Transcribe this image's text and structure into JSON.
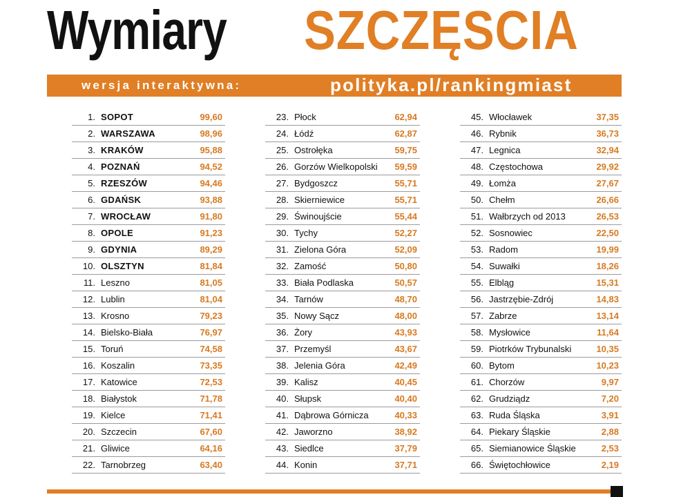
{
  "header": {
    "title_part1": "Wymiary",
    "title_part2": "SZCZĘSCIA",
    "banner_prefix": "wersja interaktywna:",
    "banner_url": "polityka.pl/rankingmiast"
  },
  "colors": {
    "accent": "#e07f25",
    "value_text": "#d67a22",
    "rule": "#9a9a9a"
  },
  "ranking": {
    "columns": [
      [
        {
          "rank": "1.",
          "city": "SOPOT",
          "score": "99,60"
        },
        {
          "rank": "2.",
          "city": "WARSZAWA",
          "score": "98,96"
        },
        {
          "rank": "3.",
          "city": "KRAKÓW",
          "score": "95,88"
        },
        {
          "rank": "4.",
          "city": "POZNAŃ",
          "score": "94,52"
        },
        {
          "rank": "5.",
          "city": "RZESZÓW",
          "score": "94,46"
        },
        {
          "rank": "6.",
          "city": "GDAŃSK",
          "score": "93,88"
        },
        {
          "rank": "7.",
          "city": "WROCŁAW",
          "score": "91,80"
        },
        {
          "rank": "8.",
          "city": "OPOLE",
          "score": "91,23"
        },
        {
          "rank": "9.",
          "city": "GDYNIA",
          "score": "89,29"
        },
        {
          "rank": "10.",
          "city": "OLSZTYN",
          "score": "81,84"
        },
        {
          "rank": "11.",
          "city": "Leszno",
          "score": "81,05"
        },
        {
          "rank": "12.",
          "city": "Lublin",
          "score": "81,04"
        },
        {
          "rank": "13.",
          "city": "Krosno",
          "score": "79,23"
        },
        {
          "rank": "14.",
          "city": "Bielsko-Biała",
          "score": "76,97"
        },
        {
          "rank": "15.",
          "city": "Toruń",
          "score": "74,58"
        },
        {
          "rank": "16.",
          "city": "Koszalin",
          "score": "73,35"
        },
        {
          "rank": "17.",
          "city": "Katowice",
          "score": "72,53"
        },
        {
          "rank": "18.",
          "city": "Białystok",
          "score": "71,78"
        },
        {
          "rank": "19.",
          "city": "Kielce",
          "score": "71,41"
        },
        {
          "rank": "20.",
          "city": "Szczecin",
          "score": "67,60"
        },
        {
          "rank": "21.",
          "city": "Gliwice",
          "score": "64,16"
        },
        {
          "rank": "22.",
          "city": "Tarnobrzeg",
          "score": "63,40"
        }
      ],
      [
        {
          "rank": "23.",
          "city": "Płock",
          "score": "62,94"
        },
        {
          "rank": "24.",
          "city": "Łódź",
          "score": "62,87"
        },
        {
          "rank": "25.",
          "city": "Ostrołęka",
          "score": "59,75"
        },
        {
          "rank": "26.",
          "city": "Gorzów Wielkopolski",
          "score": "59,59"
        },
        {
          "rank": "27.",
          "city": "Bydgoszcz",
          "score": "55,71"
        },
        {
          "rank": "28.",
          "city": "Skierniewice",
          "score": "55,71"
        },
        {
          "rank": "29.",
          "city": "Świnoujście",
          "score": "55,44"
        },
        {
          "rank": "30.",
          "city": "Tychy",
          "score": "52,27"
        },
        {
          "rank": "31.",
          "city": "Zielona Góra",
          "score": "52,09"
        },
        {
          "rank": "32.",
          "city": "Zamość",
          "score": "50,80"
        },
        {
          "rank": "33.",
          "city": "Biała Podlaska",
          "score": "50,57"
        },
        {
          "rank": "34.",
          "city": "Tarnów",
          "score": "48,70"
        },
        {
          "rank": "35.",
          "city": "Nowy Sącz",
          "score": "48,00"
        },
        {
          "rank": "36.",
          "city": "Żory",
          "score": "43,93"
        },
        {
          "rank": "37.",
          "city": "Przemyśl",
          "score": "43,67"
        },
        {
          "rank": "38.",
          "city": "Jelenia Góra",
          "score": "42,49"
        },
        {
          "rank": "39.",
          "city": "Kalisz",
          "score": "40,45"
        },
        {
          "rank": "40.",
          "city": "Słupsk",
          "score": "40,40"
        },
        {
          "rank": "41.",
          "city": "Dąbrowa Górnicza",
          "score": "40,33"
        },
        {
          "rank": "42.",
          "city": "Jaworzno",
          "score": "38,92"
        },
        {
          "rank": "43.",
          "city": "Siedlce",
          "score": "37,79"
        },
        {
          "rank": "44.",
          "city": "Konin",
          "score": "37,71"
        }
      ],
      [
        {
          "rank": "45.",
          "city": "Włocławek",
          "score": "37,35"
        },
        {
          "rank": "46.",
          "city": "Rybnik",
          "score": "36,73"
        },
        {
          "rank": "47.",
          "city": "Legnica",
          "score": "32,94"
        },
        {
          "rank": "48.",
          "city": "Częstochowa",
          "score": "29,92"
        },
        {
          "rank": "49.",
          "city": "Łomża",
          "score": "27,67"
        },
        {
          "rank": "50.",
          "city": "Chełm",
          "score": "26,66"
        },
        {
          "rank": "51.",
          "city": "Wałbrzych od 2013",
          "score": "26,53"
        },
        {
          "rank": "52.",
          "city": "Sosnowiec",
          "score": "22,50"
        },
        {
          "rank": "53.",
          "city": "Radom",
          "score": "19,99"
        },
        {
          "rank": "54.",
          "city": "Suwałki",
          "score": "18,26"
        },
        {
          "rank": "55.",
          "city": "Elbląg",
          "score": "15,31"
        },
        {
          "rank": "56.",
          "city": "Jastrzębie-Zdrój",
          "score": "14,83"
        },
        {
          "rank": "57.",
          "city": "Zabrze",
          "score": "13,14"
        },
        {
          "rank": "58.",
          "city": "Mysłowice",
          "score": "11,64"
        },
        {
          "rank": "59.",
          "city": "Piotrków Trybunalski",
          "score": "10,35"
        },
        {
          "rank": "60.",
          "city": "Bytom",
          "score": "10,23"
        },
        {
          "rank": "61.",
          "city": "Chorzów",
          "score": "9,97"
        },
        {
          "rank": "62.",
          "city": "Grudziądz",
          "score": "7,20"
        },
        {
          "rank": "63.",
          "city": "Ruda Śląska",
          "score": "3,91"
        },
        {
          "rank": "64.",
          "city": "Piekary Śląskie",
          "score": "2,88"
        },
        {
          "rank": "65.",
          "city": "Siemianowice Śląskie",
          "score": "2,53"
        },
        {
          "rank": "66.",
          "city": "Świętochłowice",
          "score": "2,19"
        }
      ]
    ]
  }
}
